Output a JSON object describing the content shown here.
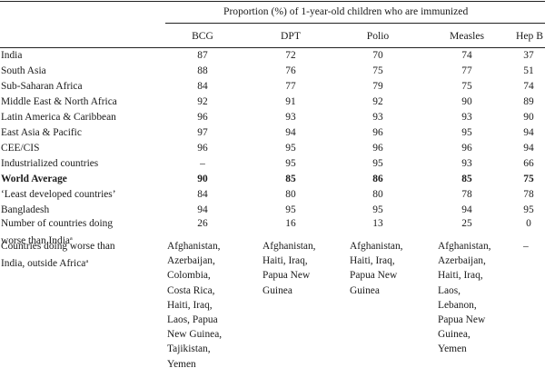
{
  "table": {
    "group_header": "Proportion (%) of 1-year-old children who are immunized",
    "columns": [
      "BCG",
      "DPT",
      "Polio",
      "Measles",
      "Hep B"
    ],
    "rows": [
      {
        "label": "India",
        "values": [
          "87",
          "72",
          "70",
          "74",
          "37"
        ],
        "bold": false
      },
      {
        "label": "South Asia",
        "values": [
          "88",
          "76",
          "75",
          "77",
          "51"
        ],
        "bold": false
      },
      {
        "label": "Sub-Saharan Africa",
        "values": [
          "84",
          "77",
          "79",
          "75",
          "74"
        ],
        "bold": false
      },
      {
        "label": "Middle East & North Africa",
        "values": [
          "92",
          "91",
          "92",
          "90",
          "89"
        ],
        "bold": false
      },
      {
        "label": "Latin America & Caribbean",
        "values": [
          "96",
          "93",
          "93",
          "93",
          "90"
        ],
        "bold": false
      },
      {
        "label": "East Asia & Pacific",
        "values": [
          "97",
          "94",
          "96",
          "95",
          "94"
        ],
        "bold": false
      },
      {
        "label": "CEE/CIS",
        "values": [
          "96",
          "95",
          "96",
          "96",
          "94"
        ],
        "bold": false
      },
      {
        "label": "Industrialized countries",
        "values": [
          "–",
          "95",
          "95",
          "93",
          "66"
        ],
        "bold": false
      },
      {
        "label": "World Average",
        "values": [
          "90",
          "85",
          "86",
          "85",
          "75"
        ],
        "bold": true
      },
      {
        "label": "‘Least developed countries’",
        "values": [
          "84",
          "80",
          "80",
          "78",
          "78"
        ],
        "bold": false
      },
      {
        "label": "Bangladesh",
        "values": [
          "94",
          "95",
          "95",
          "94",
          "95"
        ],
        "bold": false
      }
    ],
    "worse_count_row": {
      "label_line1": "Number of countries doing",
      "label_line2": "worse than India",
      "sup": "a",
      "values": [
        "26",
        "16",
        "13",
        "25",
        "0"
      ]
    },
    "worse_list_row": {
      "label_line1": "Countries doing worse than",
      "label_line2": "India, outside Africa",
      "sup": "a",
      "lists": [
        [
          "Afghanistan,",
          "Azerbaijan,",
          "Colombia,",
          "Costa Rica,",
          "Haiti, Iraq,",
          "Laos, Papua",
          "New Guinea,",
          "Tajikistan,",
          "Yemen"
        ],
        [
          "Afghanistan,",
          "Haiti, Iraq,",
          "Papua New",
          "Guinea"
        ],
        [
          "Afghanistan,",
          "Haiti, Iraq,",
          "Papua New",
          "Guinea"
        ],
        [
          "Afghanistan,",
          "Azerbaijan,",
          "Haiti, Iraq,",
          "Laos,",
          "Lebanon,",
          "Papua New",
          "Guinea,",
          "Yemen"
        ],
        [
          "–"
        ]
      ]
    }
  }
}
